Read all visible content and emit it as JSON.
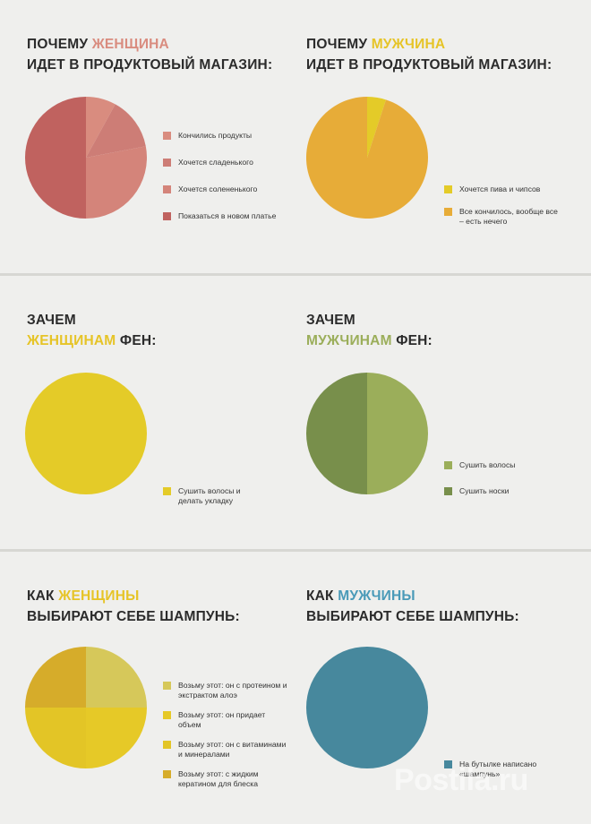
{
  "watermark": "Postila.ru",
  "colors": {
    "pink": "#d98c7f",
    "pink_mid": "#cd7d76",
    "pink_light": "#d4847a",
    "pink_dark": "#c0625f",
    "orange": "#e7ac38",
    "yellow": "#e4cb28",
    "yellow_light": "#d6c85a",
    "yellow_bright": "#e6c927",
    "mustard": "#d6ac2a",
    "green_light": "#9bae5a",
    "green_dark": "#788f4b",
    "teal": "#47889d"
  },
  "chart_data": [
    {
      "type": "pie",
      "title_pre": "Почему ",
      "title_hl": "женщина",
      "title_hl_color": "#d98c7f",
      "title_line2": "идет в продуктовый магазин:",
      "labels": [
        "Кончились продукты",
        "Хочется сладенького",
        "Хочется солененького",
        "Показаться в новом платье"
      ],
      "values": [
        8,
        14,
        28,
        50
      ],
      "colors": [
        "#d98c7f",
        "#cd7d76",
        "#d4847a",
        "#c0625f"
      ],
      "legend_placement": "right"
    },
    {
      "type": "pie",
      "title_pre": "Почему ",
      "title_hl": "мужчина",
      "title_hl_color": "#e6c427",
      "title_line2": "идет в продуктовый магазин:",
      "labels": [
        "Хочется пива и чипсов",
        "Все кончилось, вообще все – есть нечего"
      ],
      "values": [
        5,
        95
      ],
      "colors": [
        "#e4cb28",
        "#e7ac38"
      ],
      "legend_placement": "right"
    },
    {
      "type": "pie",
      "title_line1": "Зачем",
      "title_hl": "женщинам",
      "title_post": " фен:",
      "title_hl_color": "#e6c427",
      "labels": [
        "Сушить волосы и делать укладку"
      ],
      "values": [
        100
      ],
      "colors": [
        "#e4cb28"
      ],
      "legend_placement": "right"
    },
    {
      "type": "pie",
      "title_line1": "Зачем",
      "title_hl": "мужчинам",
      "title_post": " фен:",
      "title_hl_color": "#9bae5a",
      "labels": [
        "Сушить волосы",
        "Сушить носки"
      ],
      "values": [
        50,
        50
      ],
      "colors": [
        "#9bae5a",
        "#788f4b"
      ],
      "legend_placement": "right"
    },
    {
      "type": "pie",
      "title_pre": "Как ",
      "title_hl": "женщины",
      "title_hl_color": "#e6c427",
      "title_line2": "выбирают себе шампунь:",
      "labels": [
        "Возьму этот: он с протеином и экстрактом алоэ",
        "Возьму этот: он придает объем",
        "Возьму этот: он с витаминами и минералами",
        "Возьму этот: с жидким кератином для блеска"
      ],
      "values": [
        25,
        25,
        25,
        25
      ],
      "colors": [
        "#d6c85a",
        "#e6c927",
        "#e3c526",
        "#d6ac2a"
      ],
      "legend_placement": "right"
    },
    {
      "type": "pie",
      "title_pre": "Как ",
      "title_hl": "мужчины",
      "title_hl_color": "#4a9ab8",
      "title_line2": "выбирают себе шампунь:",
      "labels": [
        "На бутылке написано «шампунь»"
      ],
      "values": [
        100
      ],
      "colors": [
        "#47889d"
      ],
      "legend_placement": "right"
    }
  ]
}
